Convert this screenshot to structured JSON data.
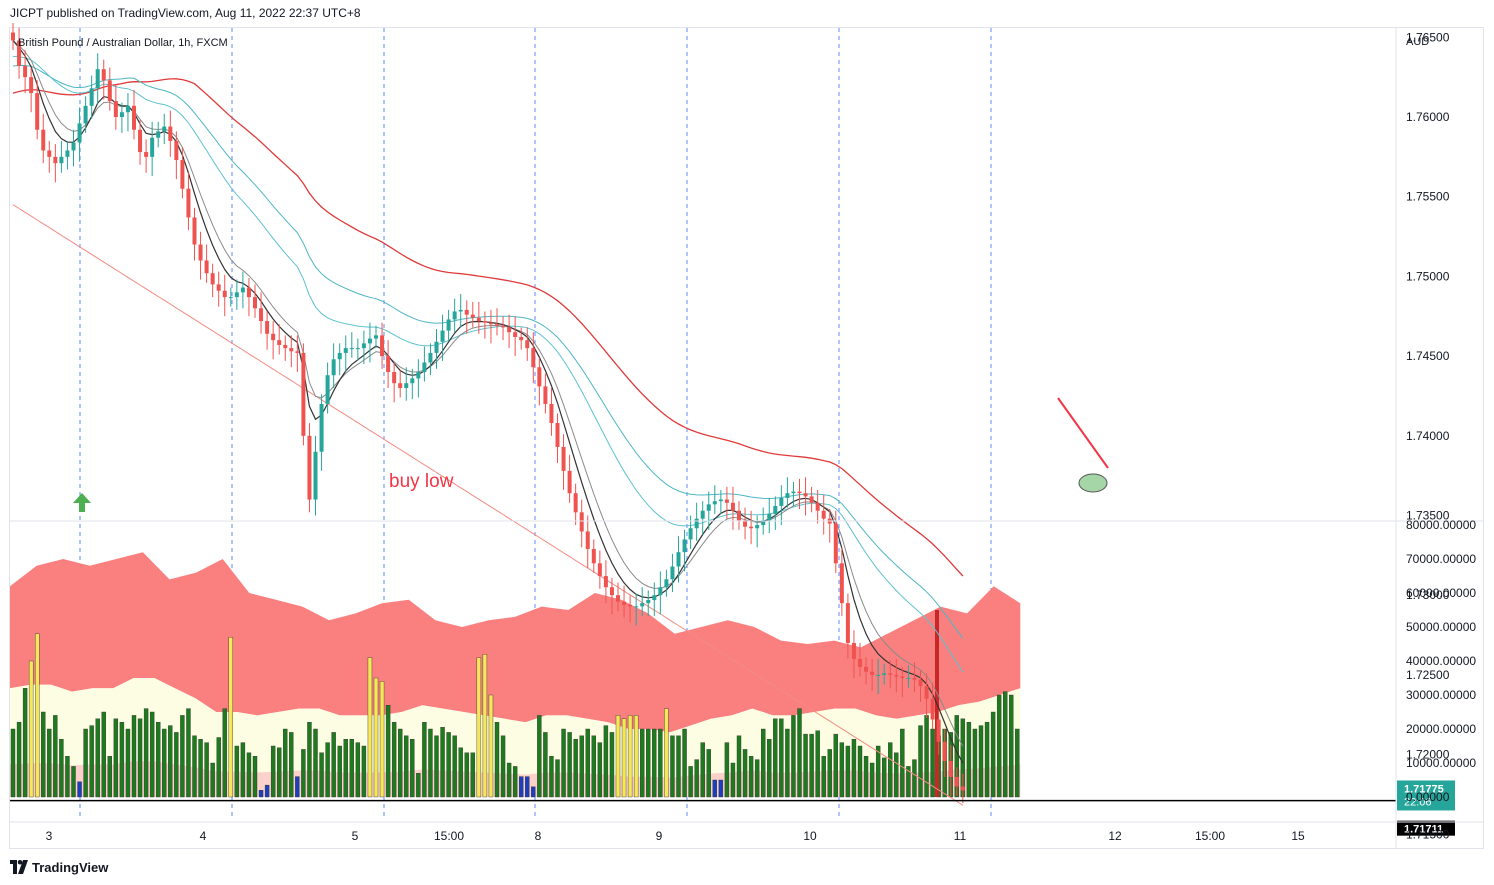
{
  "header": {
    "published": "JICPT published on TradingView.com, Aug 11, 2022 22:37 UTC+8"
  },
  "footer": {
    "brand": "TradingView"
  },
  "colors": {
    "up": "#26a69a",
    "down": "#ef5350",
    "ema_red": "#e03a3a",
    "ema_light": "#f28b82",
    "ema_teal": "#4db6c4",
    "sma_gray": "#8a8a8a",
    "sma_black": "#333333",
    "vol_green": "#1e7a1e",
    "vol_yellow": "#f5e65a",
    "vol_blue": "#1a3fbf",
    "vol_red": "#c62828",
    "band_red": "#fa8080",
    "band_cream": "#fdfde3",
    "band_pink": "#fbc6c6",
    "annotation": "#f23645",
    "arrow": "#4caf50",
    "ellipse": "#a5d6a7"
  },
  "chart_data": [
    {
      "type": "candlestick",
      "title": "British Pound / Australian Dollar, 1h, FXCM",
      "currency": "AUD",
      "y_ticks": [
        "1.76500",
        "1.76000",
        "1.75500",
        "1.75000",
        "1.74500",
        "1.74000",
        "1.73500",
        "1.73000",
        "1.72500",
        "1.72000",
        "1.71500",
        "1.71000"
      ],
      "ylim": [
        1.709,
        1.7705
      ],
      "x_ticks": [
        "3",
        "4",
        "5",
        "15:00",
        "8",
        "9",
        "10",
        "11",
        "12",
        "15:00",
        "15"
      ],
      "last_price": "1.71775",
      "countdown": "22:06",
      "horizontal_line": "1.71711",
      "annotation": "buy low",
      "grid": false,
      "closes": [
        1.7648,
        1.7632,
        1.7625,
        1.7615,
        1.7592,
        1.7579,
        1.7575,
        1.7571,
        1.7575,
        1.7579,
        1.7584,
        1.7596,
        1.7607,
        1.7618,
        1.763,
        1.7623,
        1.761,
        1.76,
        1.7603,
        1.7607,
        1.7592,
        1.7578,
        1.7575,
        1.7587,
        1.7591,
        1.7594,
        1.7585,
        1.7573,
        1.7555,
        1.7537,
        1.752,
        1.751,
        1.7502,
        1.7495,
        1.7491,
        1.7487,
        1.7487,
        1.749,
        1.7493,
        1.7487,
        1.748,
        1.7472,
        1.7464,
        1.746,
        1.7457,
        1.7455,
        1.7453,
        1.7452,
        1.74,
        1.736,
        1.739,
        1.742,
        1.7438,
        1.7448,
        1.7452,
        1.7455,
        1.7455,
        1.7455,
        1.7458,
        1.7461,
        1.7463,
        1.745,
        1.744,
        1.7433,
        1.743,
        1.7433,
        1.7436,
        1.744,
        1.7446,
        1.7452,
        1.7459,
        1.7466,
        1.7473,
        1.7478,
        1.7479,
        1.7476,
        1.7474,
        1.7472,
        1.7471,
        1.747,
        1.7469,
        1.7468,
        1.7465,
        1.7462,
        1.746,
        1.7455,
        1.7443,
        1.7431,
        1.742,
        1.7408,
        1.7393,
        1.7378,
        1.7364,
        1.7352,
        1.734,
        1.7329,
        1.732,
        1.7312,
        1.7305,
        1.73,
        1.7296,
        1.7294,
        1.7293,
        1.7293,
        1.7295,
        1.7297,
        1.73,
        1.7305,
        1.731,
        1.7318,
        1.7327,
        1.7335,
        1.7342,
        1.7348,
        1.7353,
        1.7357,
        1.7359,
        1.736,
        1.7358,
        1.7353,
        1.7347,
        1.7343,
        1.7342,
        1.7344,
        1.7347,
        1.7351,
        1.7356,
        1.7361,
        1.7364,
        1.7365,
        1.7364,
        1.7362,
        1.7358,
        1.7353,
        1.7348,
        1.7345,
        1.732,
        1.7295,
        1.727,
        1.726,
        1.7255,
        1.7252,
        1.725,
        1.725,
        1.7251,
        1.725,
        1.7249,
        1.7248,
        1.7248,
        1.7247,
        1.7243,
        1.7235,
        1.7222,
        1.7208,
        1.7196,
        1.7186,
        1.718,
        1.71775
      ]
    },
    {
      "type": "bar",
      "name": "volume",
      "y_ticks": [
        "80000.00000",
        "70000.00000",
        "60000.00000",
        "50000.00000",
        "40000.00000",
        "30000.00000",
        "20000.00000",
        "10000.00000",
        "0.00000"
      ],
      "ylim": [
        0,
        80000
      ],
      "volumes": [
        20000,
        22000,
        32000,
        40000,
        48000,
        25000,
        20000,
        24000,
        17000,
        12000,
        9000,
        4500,
        20000,
        21000,
        23000,
        25000,
        12000,
        23000,
        22000,
        20000,
        24000,
        23000,
        26000,
        25000,
        22000,
        20000,
        21000,
        19000,
        24000,
        26000,
        18000,
        17000,
        16000,
        10000,
        17500,
        26000,
        47000,
        15000,
        16000,
        13000,
        12000,
        2000,
        3500,
        15000,
        14500,
        20000,
        19000,
        6000,
        14000,
        22000,
        20000,
        13000,
        16000,
        19000,
        15000,
        17000,
        17000,
        16000,
        15000,
        41000,
        35000,
        34000,
        27000,
        22000,
        20000,
        18000,
        17000,
        7000,
        22000,
        20000,
        18000,
        20500,
        19000,
        18000,
        14500,
        13000,
        13000,
        41000,
        42000,
        30000,
        22000,
        18000,
        10000,
        9000,
        6000,
        6000,
        3000,
        24000,
        19000,
        12000,
        11000,
        20000,
        19000,
        17000,
        18000,
        20000,
        18000,
        16000,
        21000,
        19000,
        24000,
        23000,
        24000,
        24000,
        20000,
        20000,
        20000,
        20000,
        26000,
        18000,
        18000,
        20000,
        9000,
        11000,
        16000,
        14000,
        5000,
        5000,
        16000,
        10000,
        18000,
        14000,
        12000,
        11000,
        20000,
        17000,
        23000,
        23000,
        20000,
        24000,
        26000,
        18500,
        18500,
        19500,
        12000,
        14000,
        18500,
        16000,
        15000,
        17000,
        15000,
        12000,
        10000,
        15000,
        11500,
        16000,
        13000,
        20000,
        9000,
        11000,
        21000,
        24000,
        20000,
        18000,
        20000,
        19000,
        24000,
        23000,
        22000,
        20000,
        21000,
        22000,
        25000,
        30000,
        31000,
        30000,
        20000
      ],
      "band_upper": [
        62000,
        68000,
        70000,
        68000,
        70000,
        72000,
        64000,
        66000,
        70000,
        60000,
        58000,
        56000,
        52000,
        54000,
        57000,
        58000,
        52000,
        50000,
        52000,
        53000,
        56000,
        55000,
        60000,
        58000,
        54000,
        48000,
        50000,
        52000,
        50000,
        46000,
        45000,
        46000,
        44000,
        48000,
        52000,
        56000,
        54000,
        62000,
        57000
      ],
      "band_lower": [
        32000,
        33000,
        33000,
        31000,
        32000,
        32000,
        35000,
        35000,
        32000,
        29000,
        25000,
        25000,
        24000,
        25000,
        26000,
        26000,
        24000,
        24000,
        24000,
        25000,
        27000,
        26000,
        25000,
        24000,
        23000,
        22000,
        24000,
        24000,
        23000,
        22000,
        20000,
        20000,
        19000,
        21000,
        23000,
        24000,
        26000,
        24000,
        24000,
        25000,
        26000,
        26000,
        24000,
        23000,
        24000,
        25000,
        27000,
        28000,
        30000,
        32000
      ]
    }
  ]
}
